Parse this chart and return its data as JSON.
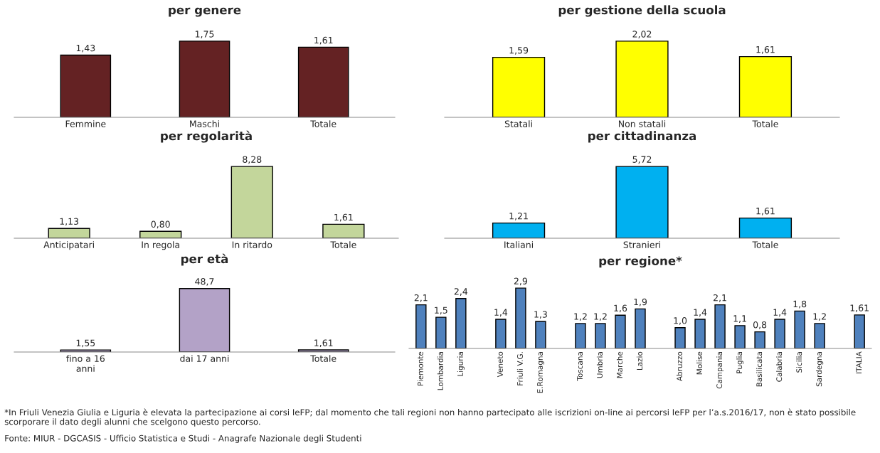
{
  "chart_data": [
    {
      "type": "bar",
      "title": "per genere",
      "categories": [
        "Femmine",
        "Maschi",
        "Totale"
      ],
      "values": [
        1.43,
        1.75,
        1.61
      ],
      "color": "#642223",
      "value_labels": [
        "1,43",
        "1,75",
        "1,61"
      ]
    },
    {
      "type": "bar",
      "title": "per gestione della scuola",
      "categories": [
        "Statali",
        "Non statali",
        "Totale"
      ],
      "values": [
        1.59,
        2.02,
        1.61
      ],
      "color": "#ffff00",
      "value_labels": [
        "1,59",
        "2,02",
        "1,61"
      ]
    },
    {
      "type": "bar",
      "title": "per regolarità",
      "categories": [
        "Anticipatari",
        "In regola",
        "In ritardo",
        "Totale"
      ],
      "values": [
        1.13,
        0.8,
        8.28,
        1.61
      ],
      "color": "#c3d69b",
      "value_labels": [
        "1,13",
        "0,80",
        "8,28",
        "1,61"
      ]
    },
    {
      "type": "bar",
      "title": "per cittadinanza",
      "categories": [
        "Italiani",
        "Stranieri",
        "Totale"
      ],
      "values": [
        1.21,
        5.72,
        1.61
      ],
      "color": "#00b0f0",
      "value_labels": [
        "1,21",
        "5,72",
        "1,61"
      ]
    },
    {
      "type": "bar",
      "title": "per età",
      "categories": [
        "fino a 16\nanni",
        "dai 17 anni",
        "Totale"
      ],
      "values": [
        1.55,
        48.7,
        1.61
      ],
      "color": "#b3a2c7",
      "value_labels": [
        "1,55",
        "48,7",
        "1,61"
      ]
    },
    {
      "type": "bar",
      "title": "per regione*",
      "categories": [
        "Piemonte",
        "Lombardia",
        "Liguria",
        null,
        "Veneto",
        "Friuli V.G.",
        "E.Romagna",
        null,
        "Toscana",
        "Umbria",
        "Marche",
        "Lazio",
        null,
        "Abruzzo",
        "Molise",
        "Campania",
        "Puglia",
        "Basilicata",
        "Calabria",
        "Sicilia",
        "Sardegna",
        null,
        "ITALIA"
      ],
      "values": [
        2.1,
        1.5,
        2.4,
        null,
        1.4,
        2.9,
        1.3,
        null,
        1.2,
        1.2,
        1.6,
        1.9,
        null,
        1.0,
        1.4,
        2.1,
        1.1,
        0.8,
        1.4,
        1.8,
        1.2,
        null,
        1.61
      ],
      "color": "#4f81bd",
      "value_labels": [
        "2,1",
        "1,5",
        "2,4",
        null,
        "1,4",
        "2,9",
        "1,3",
        null,
        "1,2",
        "1,2",
        "1,6",
        "1,9",
        null,
        "1,0",
        "1,4",
        "2,1",
        "1,1",
        "0,8",
        "1,4",
        "1,8",
        "1,2",
        null,
        "1,61"
      ],
      "annotations": [
        "*In Friuli Venezia Giulia e Liguria è elevata la partecipazione ai corsi IeFP; dal momento che tali regioni non hanno partecipato alle iscrizioni on-line ai percorsi IeFP per l’a.s.2016/17, non è stato possibile scorporare il dato degli alunni che scelgono questo percorso.",
        "Fonte: MIUR - DGCASIS - Ufficio Statistica e Studi - Anagrafe Nazionale degli Studenti"
      ]
    }
  ]
}
